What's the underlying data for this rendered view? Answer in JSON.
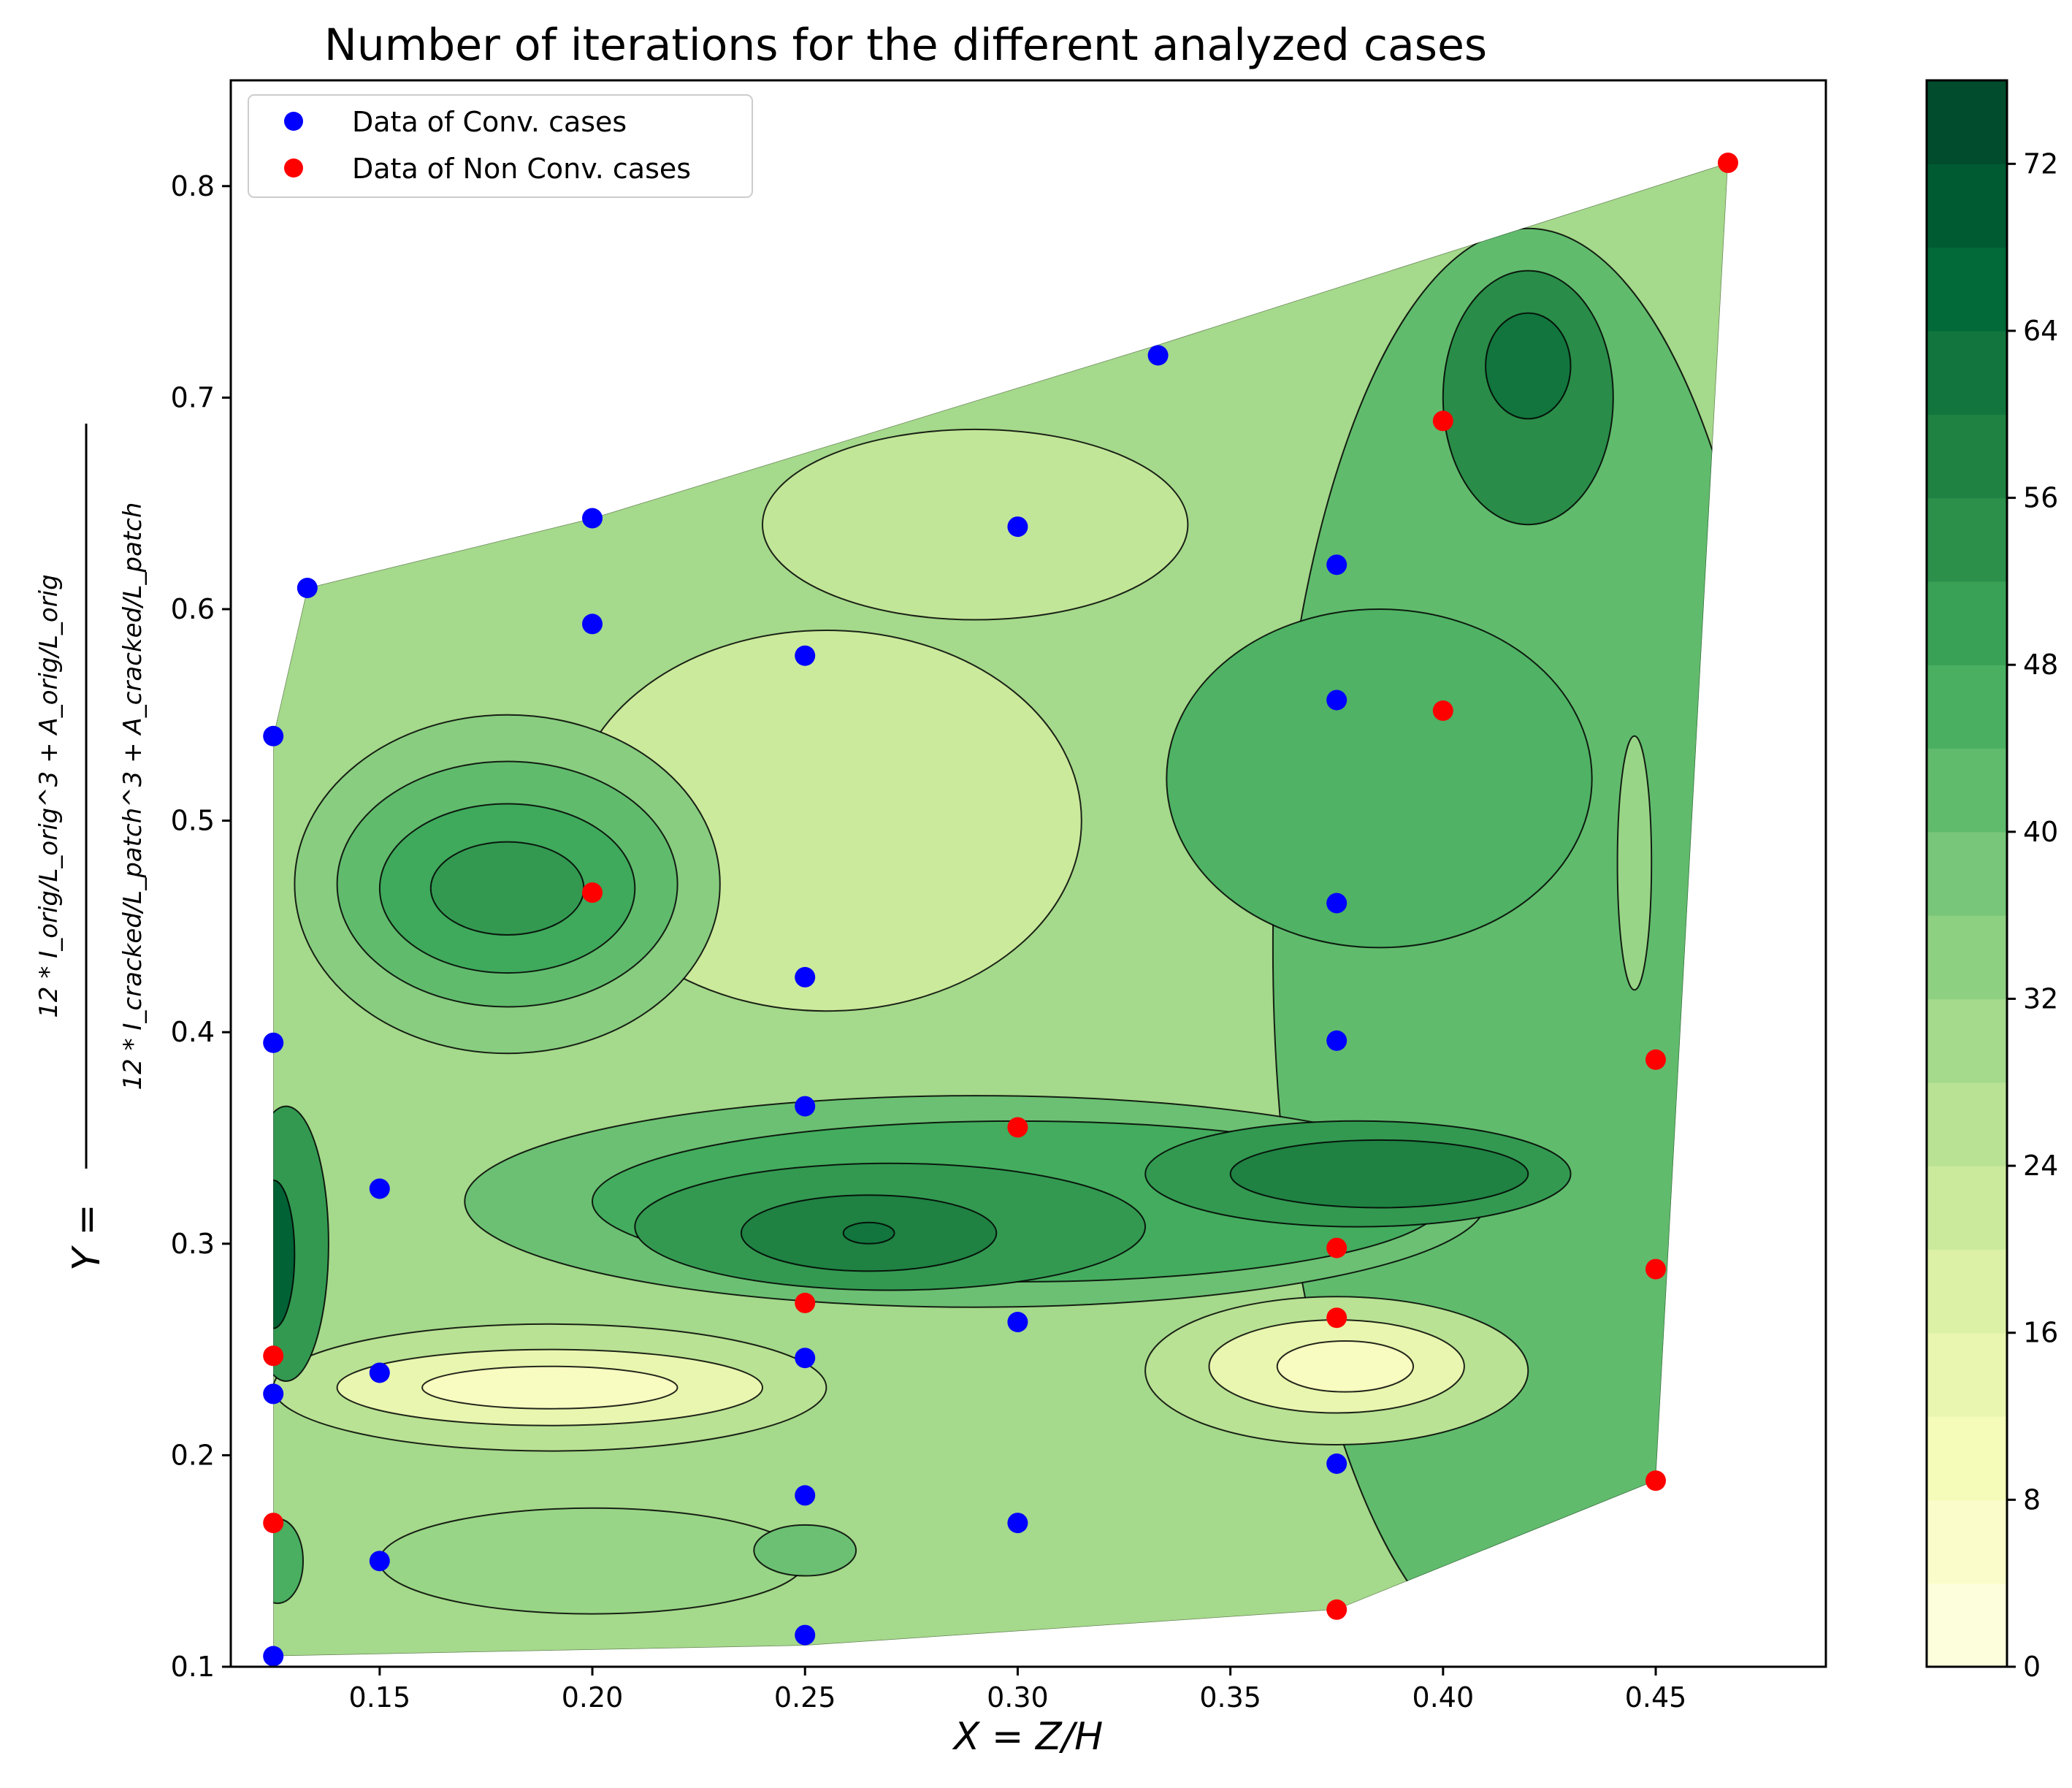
{
  "chart_data": {
    "type": "contour-scatter",
    "title": "Number of iterations for the different analyzed cases",
    "xlabel": "X = Z/H",
    "ylabel": {
      "lhs": "Y =",
      "numerator": "12 * I_orig/L_orig^3 + A_orig/L_orig",
      "denominator": "12 * I_cracked/L_patch^3 + A_cracked/L_patch"
    },
    "xlim": [
      0.115,
      0.49
    ],
    "ylim": [
      0.1,
      0.85
    ],
    "xticks": [
      "0.15",
      "0.20",
      "0.25",
      "0.30",
      "0.35",
      "0.40",
      "0.45"
    ],
    "xtick_values": [
      0.15,
      0.2,
      0.25,
      0.3,
      0.35,
      0.4,
      0.45
    ],
    "yticks": [
      "0.1",
      "0.2",
      "0.3",
      "0.4",
      "0.5",
      "0.6",
      "0.7",
      "0.8"
    ],
    "ytick_values": [
      0.1,
      0.2,
      0.3,
      0.4,
      0.5,
      0.6,
      0.7,
      0.8
    ],
    "colorbar": {
      "min": 0,
      "max": 76,
      "levels": 19,
      "ticks": [
        "0",
        "8",
        "16",
        "24",
        "32",
        "40",
        "48",
        "56",
        "64",
        "72"
      ],
      "tick_values": [
        0,
        8,
        16,
        24,
        32,
        40,
        48,
        56,
        64,
        72
      ],
      "colormap": "YlGn"
    },
    "legend": {
      "position": "top-left",
      "entries": [
        {
          "label": "Data of Conv. cases",
          "color": "#0000ff"
        },
        {
          "label": "Data of Non Conv. cases",
          "color": "#ff0000"
        }
      ]
    },
    "series": [
      {
        "name": "Data of Conv. cases",
        "color": "#0000ff",
        "points": [
          [
            0.125,
            0.105
          ],
          [
            0.125,
            0.229
          ],
          [
            0.125,
            0.395
          ],
          [
            0.125,
            0.54
          ],
          [
            0.133,
            0.61
          ],
          [
            0.15,
            0.15
          ],
          [
            0.15,
            0.239
          ],
          [
            0.15,
            0.326
          ],
          [
            0.2,
            0.593
          ],
          [
            0.2,
            0.643
          ],
          [
            0.25,
            0.115
          ],
          [
            0.25,
            0.181
          ],
          [
            0.25,
            0.246
          ],
          [
            0.25,
            0.365
          ],
          [
            0.25,
            0.426
          ],
          [
            0.25,
            0.578
          ],
          [
            0.3,
            0.168
          ],
          [
            0.3,
            0.263
          ],
          [
            0.3,
            0.639
          ],
          [
            0.333,
            0.72
          ],
          [
            0.375,
            0.196
          ],
          [
            0.375,
            0.396
          ],
          [
            0.375,
            0.461
          ],
          [
            0.375,
            0.557
          ],
          [
            0.375,
            0.621
          ]
        ]
      },
      {
        "name": "Data of Non Conv. cases",
        "color": "#ff0000",
        "points": [
          [
            0.125,
            0.168
          ],
          [
            0.125,
            0.247
          ],
          [
            0.2,
            0.466
          ],
          [
            0.25,
            0.272
          ],
          [
            0.3,
            0.355
          ],
          [
            0.375,
            0.127
          ],
          [
            0.375,
            0.265
          ],
          [
            0.375,
            0.298
          ],
          [
            0.4,
            0.552
          ],
          [
            0.4,
            0.689
          ],
          [
            0.45,
            0.188
          ],
          [
            0.45,
            0.288
          ],
          [
            0.45,
            0.387
          ],
          [
            0.467,
            0.811
          ]
        ]
      }
    ],
    "hull": [
      [
        0.125,
        0.105
      ],
      [
        0.25,
        0.11
      ],
      [
        0.375,
        0.127
      ],
      [
        0.45,
        0.188
      ],
      [
        0.467,
        0.811
      ],
      [
        0.333,
        0.725
      ],
      [
        0.2,
        0.643
      ],
      [
        0.133,
        0.61
      ],
      [
        0.125,
        0.54
      ],
      [
        0.125,
        0.105
      ]
    ],
    "regions": [
      {
        "value": 42,
        "x": 0.42,
        "y": 0.44,
        "rx": 0.06,
        "ry": 0.34
      },
      {
        "value": 45,
        "x": 0.385,
        "y": 0.52,
        "rx": 0.05,
        "ry": 0.08
      },
      {
        "value": 22,
        "x": 0.255,
        "y": 0.5,
        "rx": 0.06,
        "ry": 0.09
      },
      {
        "value": 24,
        "x": 0.29,
        "y": 0.64,
        "rx": 0.05,
        "ry": 0.045
      },
      {
        "value": 35,
        "x": 0.18,
        "y": 0.47,
        "rx": 0.05,
        "ry": 0.08
      },
      {
        "value": 42,
        "x": 0.18,
        "y": 0.47,
        "rx": 0.04,
        "ry": 0.058
      },
      {
        "value": 48,
        "x": 0.18,
        "y": 0.468,
        "rx": 0.03,
        "ry": 0.04
      },
      {
        "value": 52,
        "x": 0.18,
        "y": 0.468,
        "rx": 0.018,
        "ry": 0.022
      },
      {
        "value": 40,
        "x": 0.29,
        "y": 0.32,
        "rx": 0.12,
        "ry": 0.05
      },
      {
        "value": 47,
        "x": 0.3,
        "y": 0.32,
        "rx": 0.1,
        "ry": 0.038
      },
      {
        "value": 52,
        "x": 0.27,
        "y": 0.308,
        "rx": 0.06,
        "ry": 0.03
      },
      {
        "value": 58,
        "x": 0.265,
        "y": 0.305,
        "rx": 0.03,
        "ry": 0.018
      },
      {
        "value": 62,
        "x": 0.265,
        "y": 0.305,
        "rx": 0.006,
        "ry": 0.005
      },
      {
        "value": 52,
        "x": 0.38,
        "y": 0.333,
        "rx": 0.05,
        "ry": 0.025
      },
      {
        "value": 58,
        "x": 0.385,
        "y": 0.333,
        "rx": 0.035,
        "ry": 0.016
      },
      {
        "value": 55,
        "x": 0.42,
        "y": 0.7,
        "rx": 0.02,
        "ry": 0.06
      },
      {
        "value": 62,
        "x": 0.42,
        "y": 0.715,
        "rx": 0.01,
        "ry": 0.025
      },
      {
        "value": 26,
        "x": 0.19,
        "y": 0.232,
        "rx": 0.065,
        "ry": 0.03
      },
      {
        "value": 14,
        "x": 0.19,
        "y": 0.232,
        "rx": 0.05,
        "ry": 0.018
      },
      {
        "value": 8,
        "x": 0.19,
        "y": 0.232,
        "rx": 0.03,
        "ry": 0.01
      },
      {
        "value": 26,
        "x": 0.375,
        "y": 0.24,
        "rx": 0.045,
        "ry": 0.035
      },
      {
        "value": 14,
        "x": 0.375,
        "y": 0.242,
        "rx": 0.03,
        "ry": 0.022
      },
      {
        "value": 8,
        "x": 0.377,
        "y": 0.242,
        "rx": 0.016,
        "ry": 0.012
      },
      {
        "value": 32,
        "x": 0.2,
        "y": 0.15,
        "rx": 0.05,
        "ry": 0.025
      },
      {
        "value": 40,
        "x": 0.25,
        "y": 0.155,
        "rx": 0.012,
        "ry": 0.012
      },
      {
        "value": 52,
        "x": 0.128,
        "y": 0.3,
        "rx": 0.01,
        "ry": 0.065
      },
      {
        "value": 68,
        "x": 0.125,
        "y": 0.295,
        "rx": 0.005,
        "ry": 0.035
      },
      {
        "value": 46,
        "x": 0.126,
        "y": 0.15,
        "rx": 0.006,
        "ry": 0.02
      },
      {
        "value": 32,
        "x": 0.445,
        "y": 0.48,
        "rx": 0.004,
        "ry": 0.06
      }
    ]
  }
}
